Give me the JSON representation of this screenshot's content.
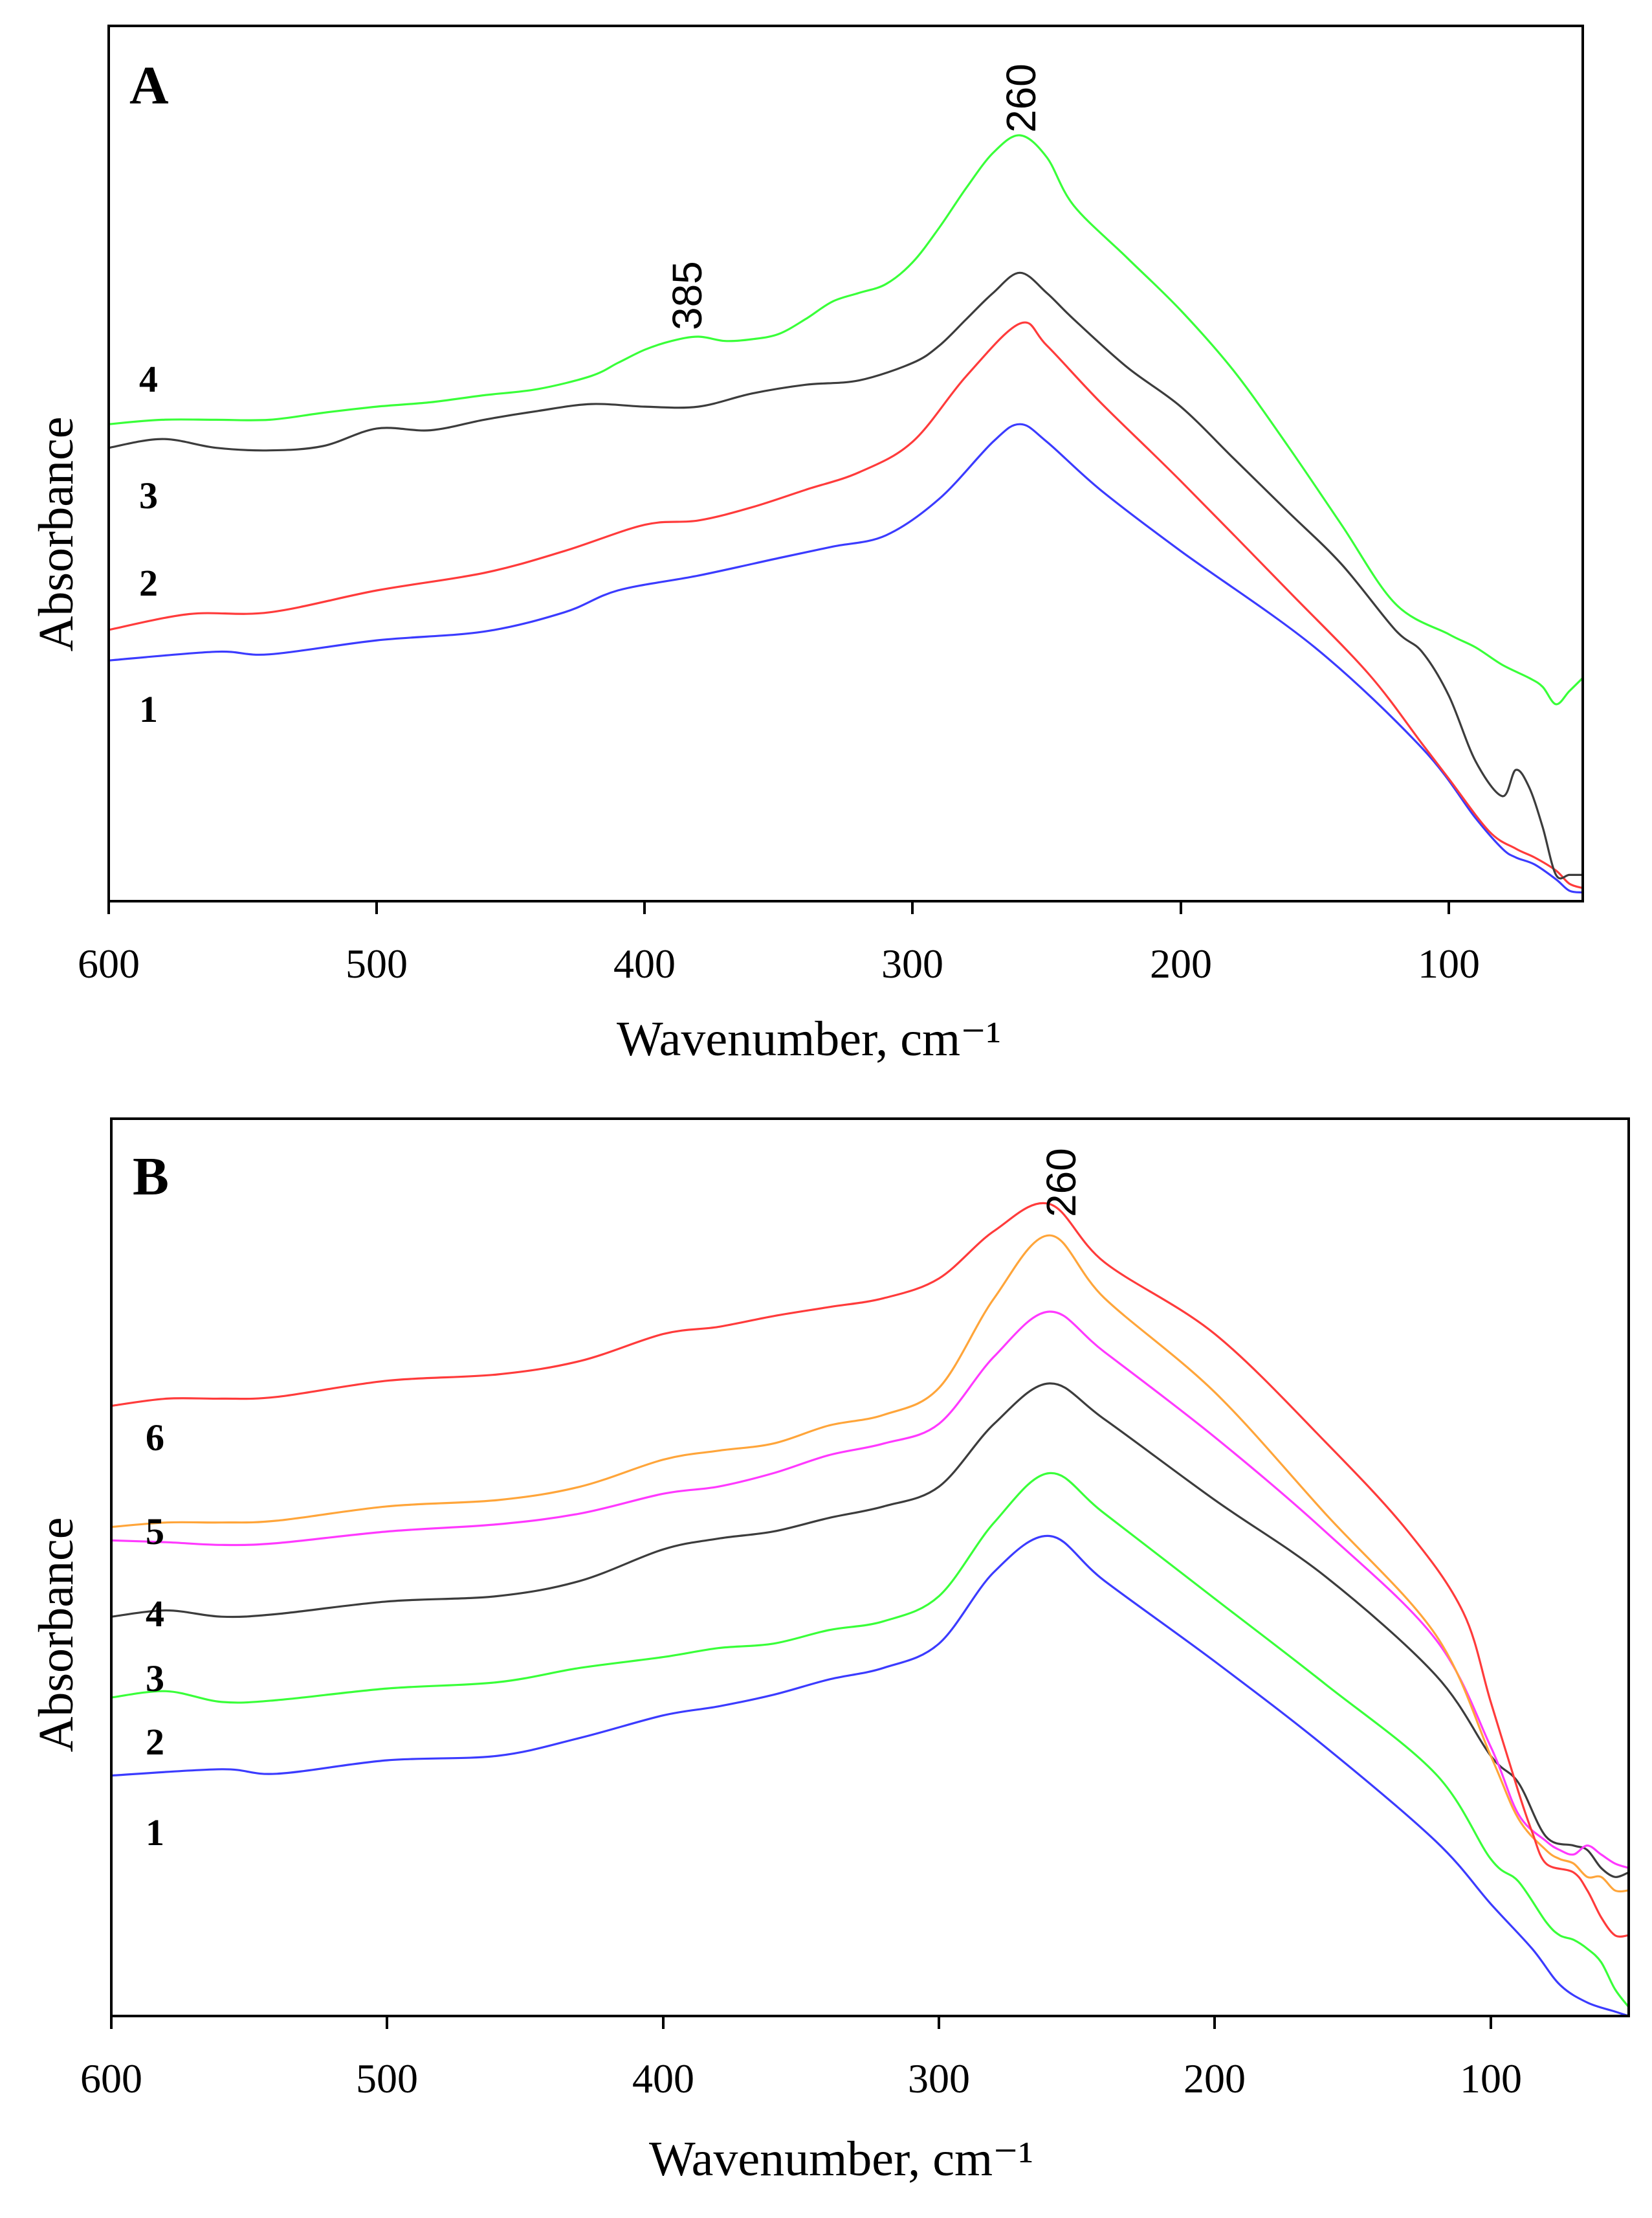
{
  "figure_title": "",
  "chart_data": [
    {
      "type": "line",
      "panel_label": "A",
      "title": "",
      "xlabel": "Wavenumber, cm⁻¹",
      "ylabel": "Absorbance",
      "xlim": [
        600,
        50
      ],
      "ylim": [
        0,
        1.0
      ],
      "x_ticks": [
        600,
        500,
        400,
        300,
        200,
        100
      ],
      "y_ticks_shown": false,
      "grid": false,
      "legend": "none; curves numbered at left edge",
      "annotations": [
        {
          "text": "260",
          "x": 260,
          "y": 0.875
        },
        {
          "text": "385",
          "x": 385,
          "y": 0.665
        }
      ],
      "series": [
        {
          "name": "1",
          "color": "#3b3bff",
          "x": [
            600,
            560,
            540,
            500,
            460,
            430,
            410,
            380,
            350,
            330,
            310,
            290,
            270,
            260,
            250,
            230,
            200,
            150,
            110,
            90,
            80,
            75,
            68,
            60,
            55,
            50
          ],
          "y": [
            0.275,
            0.285,
            0.282,
            0.298,
            0.308,
            0.33,
            0.355,
            0.372,
            0.392,
            0.405,
            0.418,
            0.46,
            0.525,
            0.545,
            0.525,
            0.47,
            0.4,
            0.29,
            0.175,
            0.095,
            0.06,
            0.05,
            0.042,
            0.025,
            0.012,
            0.01
          ]
        },
        {
          "name": "2",
          "color": "#ff3b3b",
          "x": [
            600,
            570,
            540,
            500,
            460,
            430,
            400,
            380,
            360,
            340,
            320,
            300,
            280,
            260,
            250,
            230,
            200,
            160,
            130,
            110,
            100,
            85,
            75,
            68,
            60,
            55,
            50
          ],
          "y": [
            0.31,
            0.328,
            0.33,
            0.355,
            0.375,
            0.4,
            0.43,
            0.435,
            0.45,
            0.47,
            0.49,
            0.525,
            0.6,
            0.66,
            0.635,
            0.57,
            0.48,
            0.355,
            0.26,
            0.18,
            0.14,
            0.08,
            0.06,
            0.05,
            0.035,
            0.02,
            0.015
          ]
        },
        {
          "name": "3",
          "color": "#3c3c3c",
          "x": [
            600,
            580,
            560,
            540,
            520,
            500,
            480,
            460,
            440,
            420,
            400,
            380,
            360,
            340,
            320,
            300,
            290,
            280,
            270,
            260,
            250,
            240,
            220,
            200,
            180,
            160,
            140,
            120,
            110,
            100,
            90,
            80,
            75,
            70,
            65,
            60,
            55,
            50
          ],
          "y": [
            0.518,
            0.528,
            0.518,
            0.515,
            0.52,
            0.54,
            0.538,
            0.55,
            0.56,
            0.568,
            0.565,
            0.565,
            0.58,
            0.59,
            0.595,
            0.615,
            0.635,
            0.665,
            0.695,
            0.718,
            0.695,
            0.665,
            0.61,
            0.565,
            0.505,
            0.445,
            0.385,
            0.31,
            0.285,
            0.235,
            0.16,
            0.12,
            0.15,
            0.13,
            0.085,
            0.03,
            0.03,
            0.03
          ]
        },
        {
          "name": "4",
          "color": "#39ff39",
          "x": [
            600,
            580,
            560,
            540,
            520,
            500,
            480,
            460,
            440,
            420,
            410,
            400,
            390,
            380,
            370,
            360,
            350,
            340,
            330,
            320,
            310,
            300,
            290,
            280,
            270,
            260,
            250,
            240,
            220,
            200,
            180,
            160,
            140,
            120,
            100,
            90,
            80,
            70,
            65,
            60,
            55,
            50
          ],
          "y": [
            0.545,
            0.55,
            0.55,
            0.55,
            0.558,
            0.565,
            0.57,
            0.578,
            0.585,
            0.6,
            0.615,
            0.63,
            0.64,
            0.645,
            0.64,
            0.642,
            0.648,
            0.665,
            0.685,
            0.695,
            0.705,
            0.73,
            0.77,
            0.815,
            0.855,
            0.875,
            0.85,
            0.795,
            0.735,
            0.675,
            0.605,
            0.52,
            0.43,
            0.34,
            0.305,
            0.29,
            0.27,
            0.255,
            0.245,
            0.225,
            0.24,
            0.255
          ]
        }
      ]
    },
    {
      "type": "line",
      "panel_label": "B",
      "title": "",
      "xlabel": "Wavenumber, cm⁻¹",
      "ylabel": "Absorbance",
      "xlim": [
        600,
        50
      ],
      "ylim": [
        0,
        1.0
      ],
      "x_ticks": [
        600,
        500,
        400,
        300,
        200,
        100
      ],
      "y_ticks_shown": false,
      "grid": false,
      "legend": "none; curves numbered at left edge",
      "annotations": [
        {
          "text": "260",
          "x": 260,
          "y": 0.905
        }
      ],
      "series": [
        {
          "name": "1",
          "color": "#3b3bff",
          "x": [
            600,
            560,
            540,
            500,
            460,
            430,
            400,
            380,
            360,
            340,
            320,
            300,
            280,
            260,
            240,
            200,
            160,
            120,
            100,
            85,
            75,
            65,
            55,
            50
          ],
          "y": [
            0.268,
            0.275,
            0.27,
            0.285,
            0.29,
            0.31,
            0.335,
            0.345,
            0.358,
            0.375,
            0.388,
            0.415,
            0.495,
            0.535,
            0.485,
            0.395,
            0.3,
            0.195,
            0.125,
            0.075,
            0.035,
            0.015,
            0.005,
            0.0
          ]
        },
        {
          "name": "2",
          "color": "#39ff39",
          "x": [
            600,
            580,
            560,
            540,
            500,
            460,
            430,
            400,
            380,
            360,
            340,
            320,
            300,
            280,
            260,
            240,
            200,
            160,
            120,
            100,
            90,
            80,
            75,
            70,
            65,
            60,
            55,
            50
          ],
          "y": [
            0.355,
            0.362,
            0.35,
            0.352,
            0.365,
            0.372,
            0.388,
            0.4,
            0.41,
            0.415,
            0.43,
            0.44,
            0.468,
            0.55,
            0.605,
            0.56,
            0.465,
            0.37,
            0.27,
            0.175,
            0.15,
            0.105,
            0.09,
            0.085,
            0.075,
            0.06,
            0.03,
            0.01
          ]
        },
        {
          "name": "3",
          "color": "#3c3c3c",
          "x": [
            600,
            580,
            560,
            540,
            500,
            460,
            430,
            400,
            380,
            360,
            340,
            320,
            300,
            280,
            260,
            240,
            200,
            160,
            120,
            100,
            90,
            80,
            70,
            65,
            60,
            55,
            50
          ],
          "y": [
            0.445,
            0.452,
            0.445,
            0.448,
            0.462,
            0.468,
            0.485,
            0.52,
            0.532,
            0.54,
            0.555,
            0.568,
            0.59,
            0.66,
            0.705,
            0.665,
            0.575,
            0.49,
            0.38,
            0.29,
            0.26,
            0.2,
            0.19,
            0.185,
            0.165,
            0.155,
            0.16
          ]
        },
        {
          "name": "4",
          "color": "#ff39ff",
          "x": [
            600,
            580,
            560,
            540,
            500,
            460,
            430,
            400,
            380,
            360,
            340,
            320,
            300,
            280,
            260,
            240,
            200,
            160,
            120,
            100,
            90,
            80,
            75,
            70,
            65,
            60,
            55,
            50
          ],
          "y": [
            0.53,
            0.528,
            0.525,
            0.527,
            0.54,
            0.548,
            0.56,
            0.582,
            0.59,
            0.605,
            0.625,
            0.638,
            0.66,
            0.735,
            0.785,
            0.74,
            0.645,
            0.54,
            0.42,
            0.3,
            0.225,
            0.195,
            0.185,
            0.18,
            0.19,
            0.18,
            0.17,
            0.165
          ]
        },
        {
          "name": "5",
          "color": "#ffa53a",
          "x": [
            600,
            580,
            560,
            540,
            500,
            460,
            430,
            400,
            380,
            360,
            340,
            320,
            300,
            280,
            260,
            240,
            200,
            160,
            120,
            100,
            90,
            80,
            75,
            70,
            65,
            60,
            55,
            50
          ],
          "y": [
            0.545,
            0.55,
            0.55,
            0.552,
            0.568,
            0.575,
            0.59,
            0.62,
            0.63,
            0.638,
            0.658,
            0.67,
            0.7,
            0.8,
            0.87,
            0.8,
            0.695,
            0.56,
            0.425,
            0.29,
            0.22,
            0.185,
            0.175,
            0.17,
            0.155,
            0.155,
            0.14,
            0.14
          ]
        },
        {
          "name": "6",
          "color": "#ff3b3b",
          "x": [
            600,
            580,
            560,
            540,
            500,
            460,
            430,
            400,
            380,
            360,
            340,
            320,
            300,
            280,
            260,
            240,
            200,
            160,
            130,
            110,
            100,
            90,
            85,
            80,
            70,
            65,
            60,
            55,
            50
          ],
          "y": [
            0.68,
            0.688,
            0.688,
            0.69,
            0.708,
            0.715,
            0.73,
            0.76,
            0.768,
            0.78,
            0.79,
            0.8,
            0.822,
            0.875,
            0.905,
            0.84,
            0.76,
            0.64,
            0.54,
            0.45,
            0.35,
            0.25,
            0.205,
            0.17,
            0.16,
            0.14,
            0.11,
            0.09,
            0.09
          ]
        }
      ]
    }
  ]
}
